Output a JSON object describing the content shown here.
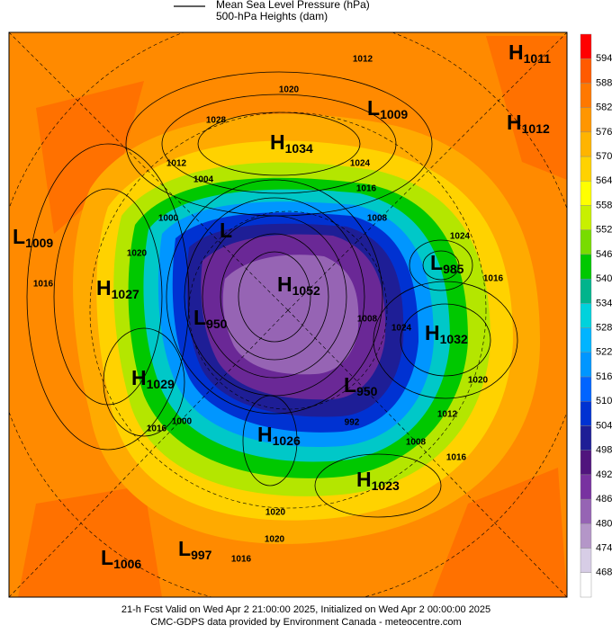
{
  "legend": {
    "mslp": "Mean Sea Level Pressure (hPa)",
    "heights": "500-hPa Heights (dam)"
  },
  "colorbar": {
    "ticks": [
      594,
      588,
      582,
      576,
      570,
      564,
      558,
      552,
      546,
      540,
      534,
      528,
      522,
      516,
      510,
      504,
      498,
      492,
      486,
      480,
      474,
      468
    ],
    "colors": [
      "#ff0000",
      "#ff5a00",
      "#ff7800",
      "#ff9600",
      "#ffb400",
      "#ffd200",
      "#ffff00",
      "#c8f000",
      "#78dc00",
      "#00c800",
      "#00b48c",
      "#00d2dc",
      "#00b4ff",
      "#0096ff",
      "#0064ff",
      "#0032d2",
      "#1e1e96",
      "#50147d",
      "#7832a0",
      "#9664b4",
      "#b496c8",
      "#d7cde6",
      "#ffffff"
    ]
  },
  "centers": [
    {
      "type": "H",
      "value": 1011
    },
    {
      "type": "H",
      "value": 1012
    },
    {
      "type": "L",
      "value": 1009
    },
    {
      "type": "H",
      "value": 1034
    },
    {
      "type": "L",
      "value": 1009
    },
    {
      "type": "H",
      "value": 1027
    },
    {
      "type": "L",
      "value": 985
    },
    {
      "type": "H",
      "value": 1052
    },
    {
      "type": "L",
      "value": 950
    },
    {
      "type": "H",
      "value": 1032
    },
    {
      "type": "H",
      "value": 1029
    },
    {
      "type": "L",
      "value": 950
    },
    {
      "type": "H",
      "value": 1026
    },
    {
      "type": "H",
      "value": 1023
    },
    {
      "type": "L",
      "value": 1006
    },
    {
      "type": "L",
      "value": 997
    },
    {
      "type": "L"
    }
  ],
  "contour_labels": [
    1012,
    1020,
    1028,
    1024,
    1012,
    1004,
    1016,
    1008,
    1024,
    1020,
    1016,
    1000,
    1008,
    1024,
    1012,
    1016,
    1020,
    992,
    1008,
    1016,
    1000,
    1016,
    1020,
    1016,
    1020
  ],
  "footer": {
    "line1": "21-h Fcst Valid on Wed Apr  2 21:00:00 2025, Initialized on Wed Apr  2 00:00:00 2025",
    "line2": "CMC-GDPS data provided by Environment Canada - meteocentre.com"
  }
}
